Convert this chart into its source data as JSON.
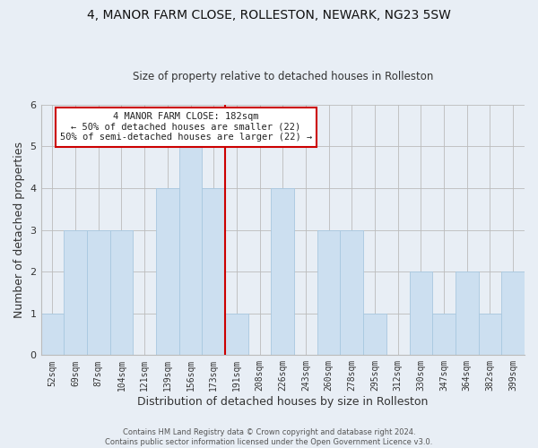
{
  "title": "4, MANOR FARM CLOSE, ROLLESTON, NEWARK, NG23 5SW",
  "subtitle": "Size of property relative to detached houses in Rolleston",
  "xlabel": "Distribution of detached houses by size in Rolleston",
  "ylabel": "Number of detached properties",
  "bar_labels": [
    "52sqm",
    "69sqm",
    "87sqm",
    "104sqm",
    "121sqm",
    "139sqm",
    "156sqm",
    "173sqm",
    "191sqm",
    "208sqm",
    "226sqm",
    "243sqm",
    "260sqm",
    "278sqm",
    "295sqm",
    "312sqm",
    "330sqm",
    "347sqm",
    "364sqm",
    "382sqm",
    "399sqm"
  ],
  "bar_values": [
    1,
    3,
    3,
    3,
    0,
    4,
    5,
    4,
    1,
    0,
    4,
    0,
    3,
    3,
    1,
    0,
    2,
    1,
    2,
    1,
    2
  ],
  "bar_color": "#ccdff0",
  "bar_edge_color": "#a8c8e0",
  "vline_color": "#cc0000",
  "annotation_title": "4 MANOR FARM CLOSE: 182sqm",
  "annotation_line1": "← 50% of detached houses are smaller (22)",
  "annotation_line2": "50% of semi-detached houses are larger (22) →",
  "annotation_box_color": "#ffffff",
  "annotation_box_edge": "#cc0000",
  "ylim": [
    0,
    6
  ],
  "yticks": [
    0,
    1,
    2,
    3,
    4,
    5,
    6
  ],
  "footer1": "Contains HM Land Registry data © Crown copyright and database right 2024.",
  "footer2": "Contains public sector information licensed under the Open Government Licence v3.0.",
  "bg_color": "#e8eef5",
  "plot_bg_color": "#e8eef5",
  "title_fontsize": 10,
  "subtitle_fontsize": 8.5,
  "axis_label_fontsize": 8,
  "tick_fontsize": 7,
  "annotation_fontsize": 7.5,
  "footer_fontsize": 6
}
